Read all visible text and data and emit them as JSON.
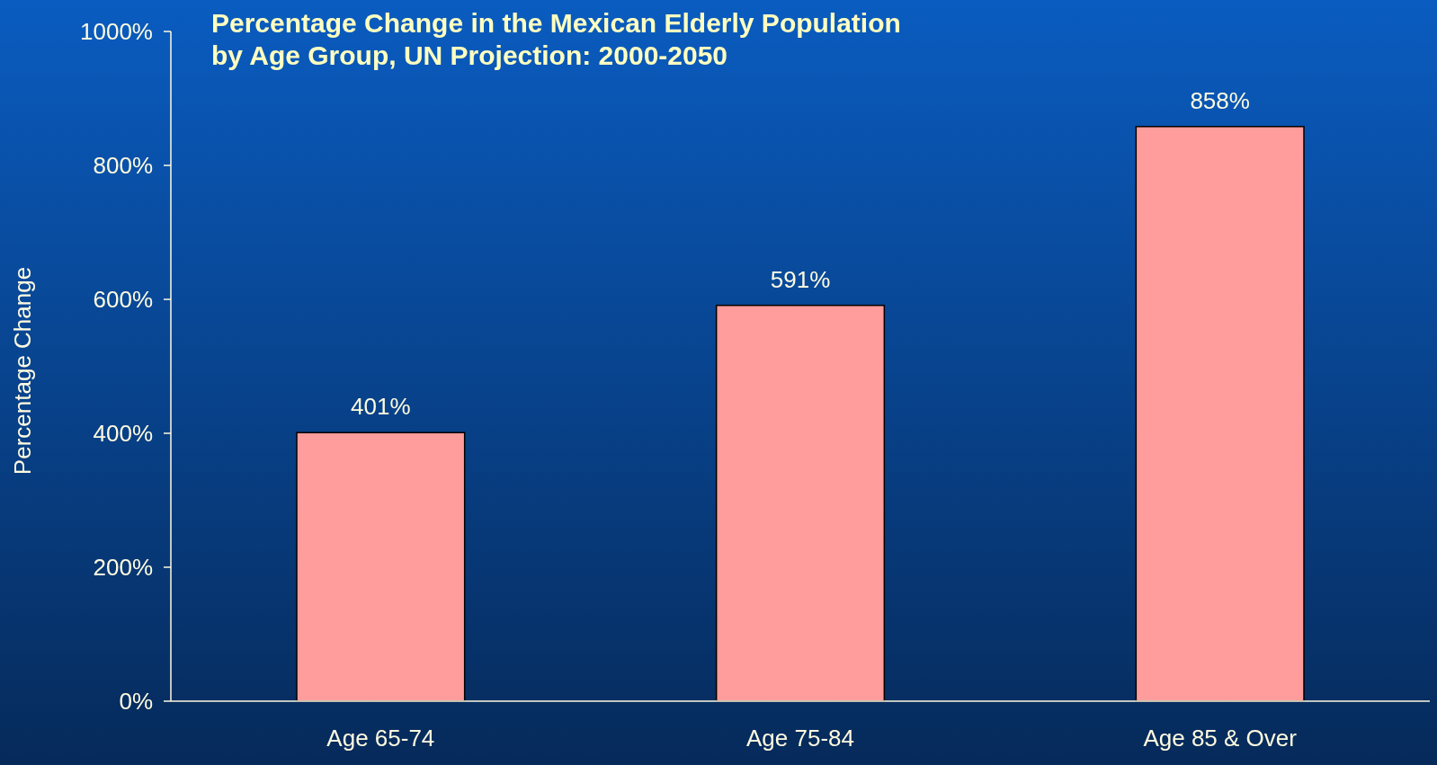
{
  "chart_data": {
    "type": "bar",
    "title": "Percentage Change in the Mexican Elderly Population\nby Age Group, UN Projection: 2000-2050",
    "ylabel": "Percentage Change",
    "categories": [
      "Age 65-74",
      "Age 75-84",
      "Age 85 & Over"
    ],
    "values": [
      401,
      591,
      858
    ],
    "value_labels": [
      "401%",
      "591%",
      "858%"
    ],
    "color": "#ff9c9c",
    "ylim": [
      0,
      1000
    ],
    "yticks": [
      {
        "value": 0,
        "label": "0%"
      },
      {
        "value": 200,
        "label": "200%"
      },
      {
        "value": 400,
        "label": "400%"
      },
      {
        "value": 600,
        "label": "600%"
      },
      {
        "value": 800,
        "label": "800%"
      },
      {
        "value": 1000,
        "label": "1000%"
      }
    ],
    "grid": false
  }
}
